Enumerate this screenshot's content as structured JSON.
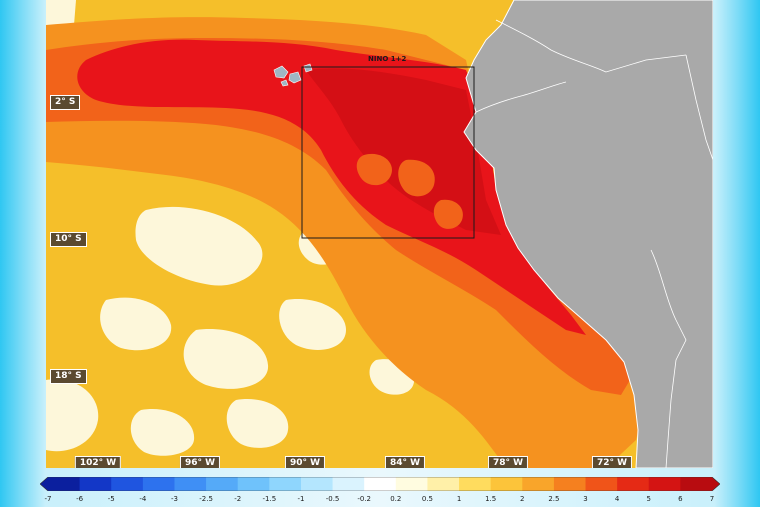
{
  "map": {
    "region_label": "NINO 1+2",
    "latitude_labels": [
      "2° S",
      "10° S",
      "18° S"
    ],
    "longitude_labels": [
      "102° W",
      "96° W",
      "90° W",
      "84° W",
      "78° W",
      "72° W"
    ]
  },
  "colors": {
    "land": "#a9a9a9",
    "ocean_base": "#f5bf2a",
    "hot": "#e8141a",
    "warm": "#f2631a",
    "orange": "#f5921f",
    "cool_white": "#fdf7da"
  },
  "colorbar": {
    "ticks": [
      "-7",
      "-6",
      "-5",
      "-4",
      "-3",
      "-2.5",
      "-2",
      "-1.5",
      "-1",
      "-0.5",
      "-0.2",
      "0.2",
      "0.5",
      "1",
      "1.5",
      "2",
      "2.5",
      "3",
      "4",
      "5",
      "6",
      "7"
    ],
    "colors": [
      "#0b1f9e",
      "#1337c7",
      "#1f55e0",
      "#2d72ee",
      "#3f8ff5",
      "#55aaf8",
      "#6fc2fb",
      "#8fd6fd",
      "#b4e6fe",
      "#daf3fe",
      "#ffffff",
      "#fffce0",
      "#fff0a8",
      "#ffdc5e",
      "#fcc43a",
      "#f9a52a",
      "#f5801f",
      "#f05419",
      "#e52a15",
      "#d41413",
      "#b80c10"
    ]
  }
}
